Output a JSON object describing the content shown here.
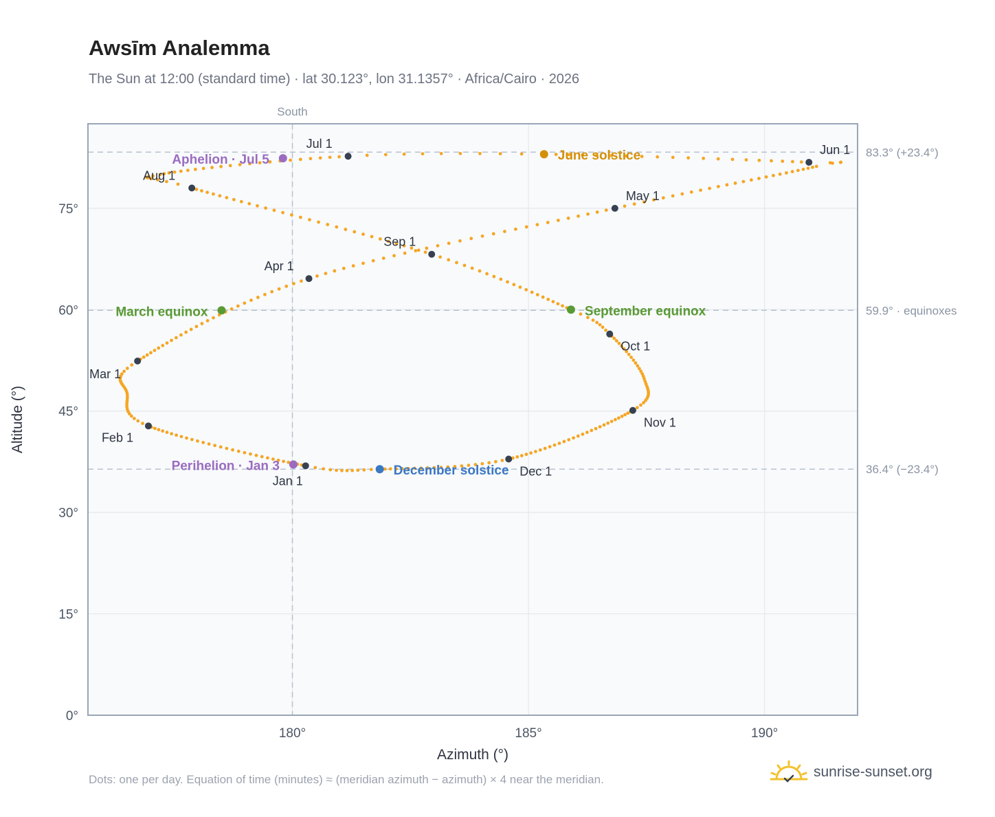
{
  "title": "Awsīm Analemma",
  "subtitle": "The Sun at 12:00 (standard time) · lat 30.123°, lon 31.1357° · Africa/Cairo · 2026",
  "footnote": "Dots: one per day. Equation of time (minutes) ≈ (meridian azimuth − azimuth) × 4 near the meridian.",
  "brand": "sunrise-sunset.org",
  "colors": {
    "curve": "#f5a623",
    "month_dot": "#374151",
    "solstice_june": "#d4900a",
    "solstice_december": "#3b78c4",
    "equinox": "#5a9a34",
    "apsis": "#9b6cc0",
    "plot_bg": "#f8fafc",
    "grid": "#e5e7eb",
    "reference_line": "#b8c3cf",
    "frame": "#9aa5b4"
  },
  "chart_data": {
    "type": "scatter",
    "xlabel": "Azimuth (°)",
    "ylabel": "Altitude (°)",
    "xlim": [
      175.67,
      191.97
    ],
    "ylim": [
      0,
      87.5
    ],
    "xticks": [
      180,
      185,
      190
    ],
    "xtick_labels": [
      "180°",
      "185°",
      "190°"
    ],
    "yticks": [
      0,
      15,
      30,
      45,
      60,
      75
    ],
    "ytick_labels": [
      "0°",
      "15°",
      "30°",
      "45°",
      "60°",
      "75°"
    ],
    "grid": true,
    "meridian": {
      "azimuth": 180,
      "label": "South"
    },
    "reference_lines": [
      {
        "altitude": 83.3,
        "label": "83.3° (+23.4°)"
      },
      {
        "altitude": 59.9,
        "label": "59.9° · equinoxes"
      },
      {
        "altitude": 36.4,
        "label": "36.4° (−23.4°)"
      }
    ],
    "months": [
      {
        "label": "Jan 1",
        "az": 180.28,
        "alt": 36.9
      },
      {
        "label": "Feb 1",
        "az": 176.95,
        "alt": 42.8
      },
      {
        "label": "Mar 1",
        "az": 176.72,
        "alt": 52.4
      },
      {
        "label": "Apr 1",
        "az": 180.35,
        "alt": 64.6
      },
      {
        "label": "May 1",
        "az": 186.83,
        "alt": 75.0
      },
      {
        "label": "Jun 1",
        "az": 190.94,
        "alt": 81.8
      },
      {
        "label": "Jul 1",
        "az": 181.18,
        "alt": 82.7
      },
      {
        "label": "Aug 1",
        "az": 177.87,
        "alt": 78.0
      },
      {
        "label": "Sep 1",
        "az": 182.95,
        "alt": 68.2
      },
      {
        "label": "Oct 1",
        "az": 186.72,
        "alt": 56.4
      },
      {
        "label": "Nov 1",
        "az": 187.21,
        "alt": 45.1
      },
      {
        "label": "Dec 1",
        "az": 184.58,
        "alt": 37.9
      }
    ],
    "events": [
      {
        "label": "June solstice",
        "az": 185.33,
        "alt": 83.0,
        "kind": "solstice_june"
      },
      {
        "label": "December solstice",
        "az": 181.85,
        "alt": 36.4,
        "kind": "solstice_december"
      },
      {
        "label": "March equinox",
        "az": 178.5,
        "alt": 59.9,
        "kind": "equinox"
      },
      {
        "label": "September equinox",
        "az": 185.9,
        "alt": 60.0,
        "kind": "equinox"
      },
      {
        "label": "Aphelion · Jul 5",
        "az": 179.8,
        "alt": 82.4,
        "kind": "apsis"
      },
      {
        "label": "Perihelion · Jan 3",
        "az": 180.02,
        "alt": 37.1,
        "kind": "apsis"
      }
    ],
    "curve_keypoints": [
      {
        "day": 0,
        "az": 180.28,
        "alt": 36.9
      },
      {
        "day": 31,
        "az": 176.95,
        "alt": 42.8
      },
      {
        "day": 45,
        "az": 176.5,
        "alt": 47.6
      },
      {
        "day": 59,
        "az": 176.72,
        "alt": 52.4
      },
      {
        "day": 90,
        "az": 180.35,
        "alt": 64.6
      },
      {
        "day": 120,
        "az": 186.83,
        "alt": 75.0
      },
      {
        "day": 146,
        "az": 191.1,
        "alt": 81.2
      },
      {
        "day": 151,
        "az": 190.94,
        "alt": 81.8
      },
      {
        "day": 171,
        "az": 185.33,
        "alt": 83.0
      },
      {
        "day": 181,
        "az": 181.18,
        "alt": 82.7
      },
      {
        "day": 203,
        "az": 177.2,
        "alt": 80.0
      },
      {
        "day": 212,
        "az": 177.87,
        "alt": 78.0
      },
      {
        "day": 243,
        "az": 182.95,
        "alt": 68.2
      },
      {
        "day": 265,
        "az": 185.9,
        "alt": 60.0
      },
      {
        "day": 273,
        "az": 186.72,
        "alt": 56.4
      },
      {
        "day": 290,
        "az": 187.45,
        "alt": 49.8
      },
      {
        "day": 304,
        "az": 187.21,
        "alt": 45.1
      },
      {
        "day": 334,
        "az": 184.58,
        "alt": 37.9
      },
      {
        "day": 354,
        "az": 181.85,
        "alt": 36.4
      },
      {
        "day": 365,
        "az": 180.28,
        "alt": 36.9
      }
    ]
  }
}
